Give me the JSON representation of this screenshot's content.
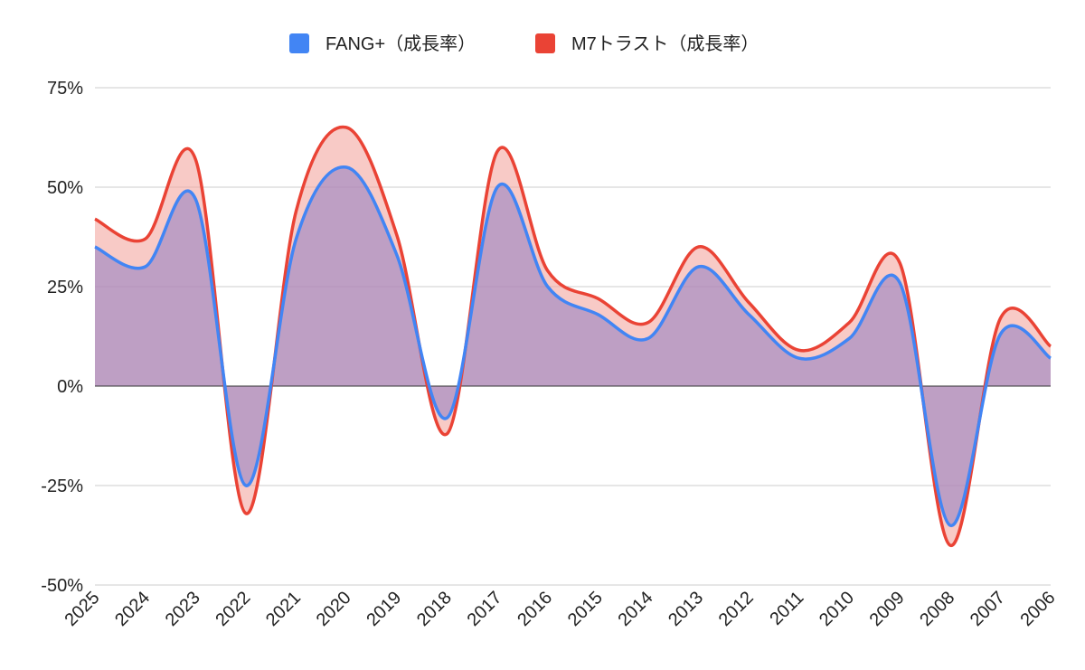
{
  "chart_data": {
    "type": "area",
    "categories": [
      "2025",
      "2024",
      "2023",
      "2022",
      "2021",
      "2020",
      "2019",
      "2018",
      "2017",
      "2016",
      "2015",
      "2014",
      "2013",
      "2012",
      "2011",
      "2010",
      "2009",
      "2008",
      "2007",
      "2006"
    ],
    "series": [
      {
        "name": "FANG+（成長率）",
        "color": "#4285f4",
        "fill": "#8e7cc3",
        "values": [
          35,
          30,
          47,
          -25,
          37,
          55,
          33,
          -8,
          50,
          25,
          18,
          12,
          30,
          18,
          7,
          12,
          26,
          -35,
          13,
          7
        ]
      },
      {
        "name": "M7トラスト（成長率）",
        "color": "#ea4335",
        "fill": "#f4a7a0",
        "values": [
          42,
          37,
          57,
          -32,
          44,
          65,
          38,
          -12,
          59,
          29,
          22,
          16,
          35,
          21,
          9,
          16,
          31,
          -40,
          17,
          10
        ]
      }
    ],
    "ylim": [
      -50,
      75
    ],
    "yticks": [
      75,
      50,
      25,
      0,
      -25,
      -50
    ],
    "ytick_labels": [
      "75%",
      "50%",
      "25%",
      "0%",
      "-25%",
      "-50%"
    ],
    "title": "",
    "xlabel": "",
    "ylabel": "",
    "grid": true,
    "legend_position": "top-center"
  }
}
